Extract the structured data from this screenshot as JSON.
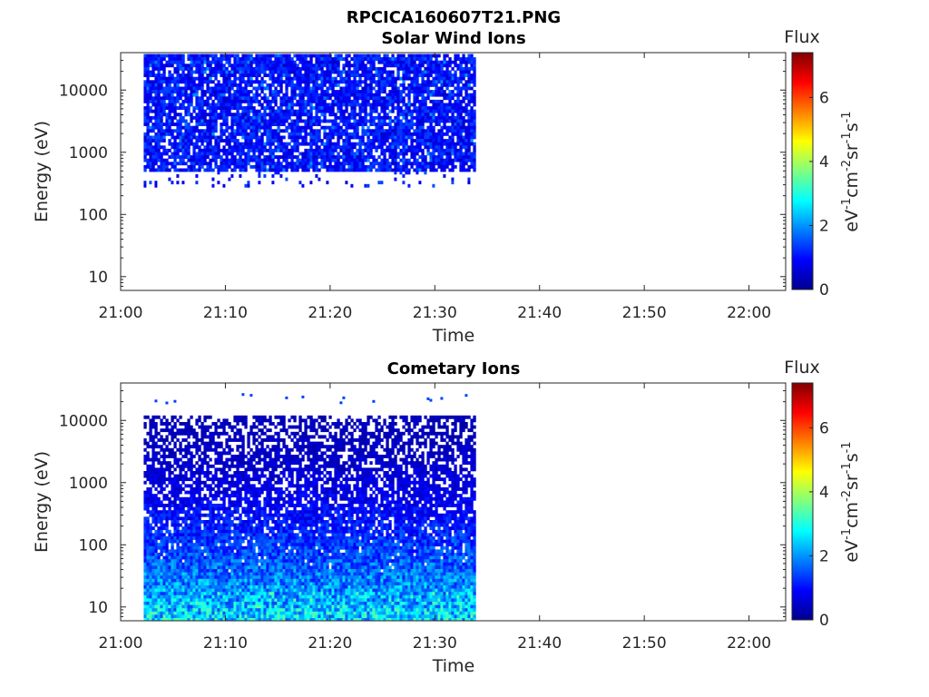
{
  "figure_title": "RPCICA160607T21.PNG",
  "colorbar": {
    "title": "Flux",
    "label_parts": [
      "eV",
      "-1",
      "cm",
      "-2",
      "sr",
      "-1",
      "s",
      "-1"
    ],
    "ticks": [
      "0",
      "2",
      "4",
      "6"
    ],
    "range": [
      0,
      7.4
    ]
  },
  "chart_data": [
    {
      "type": "heatmap",
      "title": "Solar Wind Ions",
      "xlabel": "Time",
      "ylabel": "Energy (eV)",
      "x_ticks": [
        "21:00",
        "21:10",
        "21:20",
        "21:30",
        "21:40",
        "21:50",
        "22:00"
      ],
      "x_range_minutes": [
        0,
        63.5
      ],
      "y_ticks": [
        "10",
        "100",
        "1000",
        "10000"
      ],
      "y_scale": "log",
      "y_range": [
        6,
        40000
      ],
      "data_time_span_minutes": [
        2.2,
        33.8
      ],
      "energy_band_eV": [
        500,
        38000
      ],
      "sparse_energy_eV": [
        300,
        500
      ],
      "typical_flux": 1.0,
      "peak_flux": 2.0
    },
    {
      "type": "heatmap",
      "title": "Cometary Ions",
      "xlabel": "Time",
      "ylabel": "Energy (eV)",
      "x_ticks": [
        "21:00",
        "21:10",
        "21:20",
        "21:30",
        "21:40",
        "21:50",
        "22:00"
      ],
      "x_range_minutes": [
        0,
        63.5
      ],
      "y_ticks": [
        "10",
        "100",
        "1000",
        "10000"
      ],
      "y_scale": "log",
      "y_range": [
        6,
        40000
      ],
      "data_time_span_minutes": [
        2.2,
        33.8
      ],
      "energy_band_eV": [
        6,
        12000
      ],
      "isolated_points_energy_eV": [
        20000,
        28000
      ],
      "flux_at_low_energy": 2.6,
      "flux_at_high_energy": 0.4,
      "peak_flux": 3.5
    }
  ]
}
